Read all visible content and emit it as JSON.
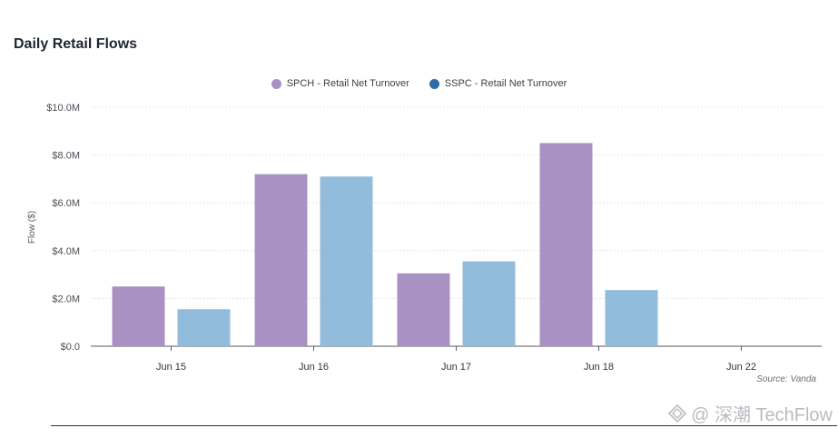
{
  "chart_data": {
    "type": "bar",
    "title": "Daily Retail Flows",
    "ylabel": "Flow ($)",
    "categories": [
      "Jun 15",
      "Jun 16",
      "Jun 17",
      "Jun 18",
      "Jun 22"
    ],
    "series": [
      {
        "name": "SPCH - Retail Net Turnover",
        "color": "#a992c3",
        "values": [
          2.5,
          7.2,
          3.05,
          8.5,
          null
        ]
      },
      {
        "name": "SSPC - Retail Net Turnover",
        "color": "#92bcdc",
        "values": [
          1.55,
          7.1,
          3.55,
          2.35,
          null
        ]
      }
    ],
    "ylim": [
      0,
      10
    ],
    "yticks": [
      "$0.0",
      "$2.0M",
      "$4.0M",
      "$6.0M",
      "$8.0M",
      "$10.0M"
    ],
    "legend_marker_colors": [
      "#a992c3",
      "#2e6ea6"
    ],
    "grid": true,
    "legend": "top-center",
    "source": "Source: Vanda"
  },
  "watermark": {
    "text": "@ 深潮 TechFlow",
    "icon": "diamond-logo-icon"
  }
}
